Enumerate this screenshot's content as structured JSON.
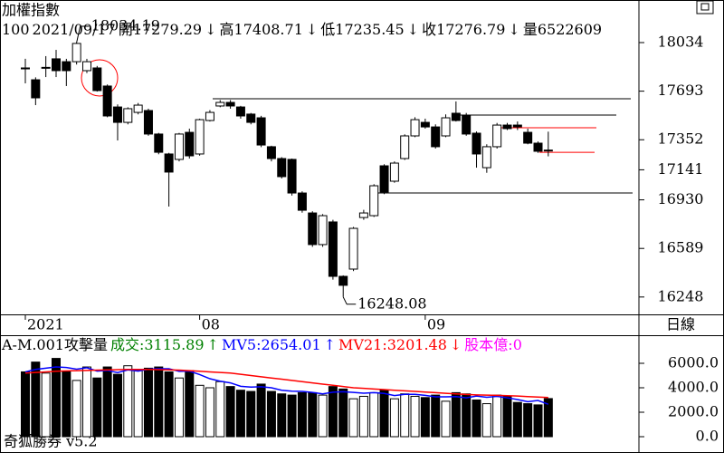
{
  "header": {
    "title": "加權指數",
    "info": [
      "100",
      "2021/09/17",
      "開17279.29",
      "↓",
      "高17408.71",
      "↓",
      "低17235.45",
      "↓",
      "收17276.79",
      "↓",
      "量6522609"
    ]
  },
  "period_label": "日線",
  "footer": "奇狐勝券 v5.2",
  "chart_data": [
    {
      "type": "candlestick",
      "categories": [
        "2021",
        null,
        null,
        null,
        null,
        null,
        null,
        null,
        null,
        null,
        null,
        null,
        null,
        null,
        null,
        null,
        null,
        "08",
        null,
        null,
        null,
        null,
        null,
        null,
        null,
        null,
        null,
        null,
        null,
        null,
        null,
        null,
        null,
        null,
        null,
        null,
        null,
        null,
        null,
        "09",
        null,
        null,
        null,
        null,
        null,
        null,
        null,
        null,
        null,
        null,
        null,
        null
      ],
      "open": [
        17856,
        17773,
        17856,
        17920,
        17900,
        17900,
        17837,
        17856,
        17729,
        17582,
        17474,
        17544,
        17557,
        17392,
        17252,
        17214,
        17404,
        17252,
        17487,
        17589,
        17614,
        17582,
        17532,
        17506,
        17303,
        17220,
        17214,
        16978,
        16838,
        16616,
        16775,
        16393,
        16444,
        16806,
        16819,
        17169,
        17061,
        17220,
        17379,
        17474,
        17442,
        17379,
        17538,
        17519,
        17398,
        17156,
        17303,
        17455,
        17455,
        17404,
        17328,
        17279.29
      ],
      "high": [
        17920,
        17790,
        17939,
        17983,
        17920,
        18034.19,
        17920,
        17870,
        17740,
        17600,
        17580,
        17610,
        17570,
        17400,
        17260,
        17400,
        17430,
        17500,
        17560,
        17630,
        17630,
        17590,
        17540,
        17520,
        17310,
        17230,
        17220,
        16990,
        16850,
        16830,
        16790,
        16400,
        16740,
        16860,
        17040,
        17180,
        17200,
        17390,
        17510,
        17500,
        17460,
        17530,
        17621,
        17540,
        17410,
        17320,
        17470,
        17470,
        17480,
        17430,
        17340,
        17408.71
      ],
      "low": [
        17748,
        17595,
        17792,
        17792,
        17729,
        17880,
        17820,
        17690,
        17510,
        17347,
        17460,
        17530,
        17380,
        17250,
        16883,
        17200,
        17220,
        17240,
        17480,
        17580,
        17570,
        17500,
        17460,
        17300,
        17200,
        17080,
        16960,
        16840,
        16600,
        16600,
        16370,
        16248.08,
        16430,
        16790,
        16810,
        16970,
        17050,
        17210,
        17370,
        17430,
        17290,
        17370,
        17480,
        17380,
        17156,
        17120,
        17290,
        17420,
        17420,
        17320,
        17260,
        17235.45
      ],
      "close": [
        17850,
        17646,
        17860,
        17837,
        17837,
        18028,
        17900,
        17697,
        17519,
        17474,
        17570,
        17595,
        17392,
        17264,
        17125,
        17392,
        17239,
        17493,
        17544,
        17614,
        17589,
        17519,
        17474,
        17315,
        17220,
        17093,
        16978,
        16857,
        16616,
        16819,
        16393,
        16330,
        16730,
        16838,
        17029,
        16985,
        17188,
        17379,
        17493,
        17442,
        17303,
        17506,
        17487,
        17392,
        17252,
        17303,
        17455,
        17430,
        17442,
        17328,
        17271,
        17276.79
      ],
      "annotations": [
        18034.19,
        16248.08
      ],
      "levels": [
        {
          "value": 17640,
          "color": "#000000"
        },
        {
          "value": 17525,
          "color": "#000000"
        },
        {
          "value": 16978,
          "color": "#000000"
        },
        {
          "value": 17436,
          "color": "#ff0000"
        },
        {
          "value": 17264,
          "color": "#ff0000"
        }
      ],
      "ylim": [
        16126,
        18333
      ],
      "yticks": [
        18034,
        17693,
        17352,
        17141,
        16930,
        16589,
        16248
      ]
    },
    {
      "type": "volume",
      "title": "A-M.001攻擊量",
      "legend": [
        {
          "text": "成交:3115.89",
          "color": "#008000"
        },
        {
          "text": "↑",
          "color": "#008000"
        },
        {
          "text": "MV5:2654.01",
          "color": "#0000ff"
        },
        {
          "text": "↑",
          "color": "#0000ff"
        },
        {
          "text": "MV21:3201.48",
          "color": "#ff0000"
        },
        {
          "text": "↓",
          "color": "#ff0000"
        },
        {
          "text": "股本億:0",
          "color": "#ff00ff"
        }
      ],
      "values": [
        5300,
        6100,
        5200,
        6400,
        5300,
        4600,
        5700,
        4800,
        5700,
        5100,
        5800,
        5400,
        5600,
        5700,
        5300,
        4800,
        5400,
        4200,
        4000,
        4500,
        4100,
        3800,
        3700,
        4300,
        3700,
        3500,
        3400,
        3600,
        3600,
        3400,
        4100,
        3900,
        3100,
        3300,
        3600,
        3800,
        3100,
        3500,
        3300,
        3200,
        3400,
        2900,
        3600,
        3500,
        3000,
        2700,
        3400,
        3300,
        2800,
        2700,
        2600,
        3115.89
      ],
      "series": [
        {
          "color": "#0000ff",
          "values": [
            5300,
            5500,
            5600,
            5700,
            5660,
            5520,
            5640,
            5360,
            5420,
            5240,
            5460,
            5360,
            5520,
            5560,
            5560,
            5340,
            5360,
            5080,
            4740,
            4540,
            4400,
            4120,
            4060,
            4080,
            4000,
            3800,
            3720,
            3700,
            3620,
            3500,
            3640,
            3680,
            3620,
            3560,
            3600,
            3540,
            3360,
            3460,
            3460,
            3380,
            3260,
            3260,
            3280,
            3180,
            3320,
            3220,
            3300,
            3180,
            3040,
            2860,
            2960,
            2654.01
          ]
        },
        {
          "color": "#ff0000",
          "values": [
            5200,
            5250,
            5300,
            5350,
            5380,
            5400,
            5420,
            5440,
            5460,
            5480,
            5500,
            5500,
            5500,
            5480,
            5460,
            5440,
            5400,
            5350,
            5300,
            5250,
            5200,
            5100,
            5000,
            4900,
            4800,
            4700,
            4600,
            4500,
            4400,
            4300,
            4200,
            4100,
            4000,
            3950,
            3900,
            3850,
            3800,
            3750,
            3700,
            3650,
            3600,
            3550,
            3500,
            3450,
            3420,
            3400,
            3380,
            3350,
            3320,
            3280,
            3240,
            3201.48
          ]
        }
      ],
      "ylim": [
        -1111,
        8296
      ],
      "yticks": [
        {
          "value": 6000,
          "label": "6000.0"
        },
        {
          "value": 4000,
          "label": "4000.0"
        },
        {
          "value": 2000,
          "label": "2000.0"
        },
        {
          "value": 0,
          "label": "0.0"
        }
      ]
    }
  ]
}
